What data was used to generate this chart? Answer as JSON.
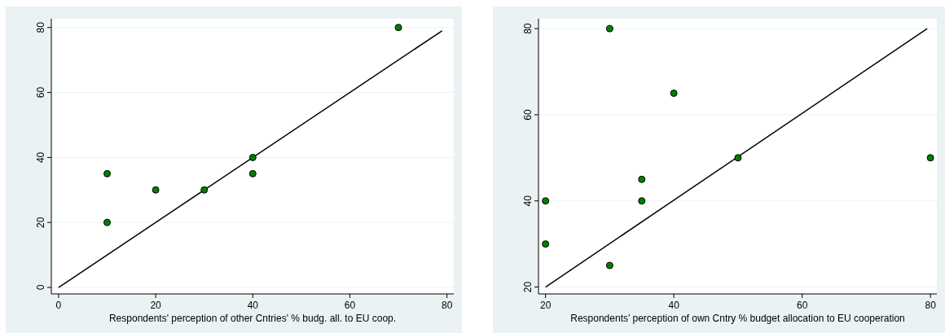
{
  "chart_data": [
    {
      "type": "scatter",
      "xlabel": "Respondents' perception of other Cntries' % budg. all. to EU coop.",
      "xlim": [
        -1.5,
        81.4
      ],
      "ylim": [
        -2,
        82.7
      ],
      "xticks": [
        0,
        20,
        40,
        60,
        80
      ],
      "yticks": [
        0,
        20,
        40,
        60,
        80
      ],
      "grid": "y",
      "marker": "circle",
      "series": [
        {
          "color": "#007f00",
          "x": [
            10,
            10,
            20,
            30,
            40,
            40,
            70
          ],
          "values": [
            35,
            20,
            30,
            30,
            40,
            35,
            80
          ]
        },
        {
          "type": "line",
          "color": "#000000",
          "line_style": "solid",
          "marker": "none",
          "x": [
            0,
            79
          ],
          "values": [
            0,
            79
          ]
        }
      ]
    },
    {
      "type": "scatter",
      "xlabel": "Respondents’ perception of own Cntry % budget allocation to EU cooperation",
      "xlim": [
        18.9,
        81
      ],
      "ylim": [
        18.4,
        82.3
      ],
      "xticks": [
        20,
        40,
        60,
        80
      ],
      "yticks": [
        20,
        40,
        60,
        80
      ],
      "grid": "y",
      "marker": "circle",
      "series": [
        {
          "color": "#007f00",
          "x": [
            30,
            40,
            50,
            35,
            20,
            35,
            20,
            30,
            80
          ],
          "values": [
            80,
            65,
            50,
            45,
            40,
            40,
            30,
            25,
            50
          ]
        },
        {
          "type": "line",
          "color": "#000000",
          "line_style": "solid",
          "marker": "none",
          "x": [
            20,
            79.5
          ],
          "values": [
            20,
            80
          ]
        }
      ]
    }
  ]
}
